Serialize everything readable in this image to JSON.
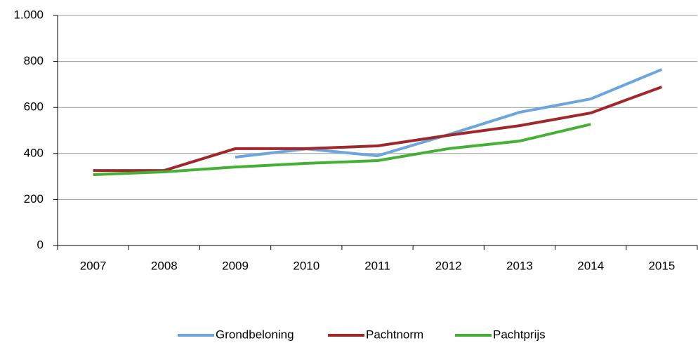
{
  "chart_data": {
    "type": "line",
    "categories": [
      "2007",
      "2008",
      "2009",
      "2010",
      "2011",
      "2012",
      "2013",
      "2014",
      "2015"
    ],
    "series": [
      {
        "name": "Grondbeloning",
        "color": "#6ca6dc",
        "values": [
          null,
          null,
          384,
          420,
          390,
          482,
          579,
          637,
          765
        ]
      },
      {
        "name": "Pachtnorm",
        "color": "#a0282d",
        "values": [
          326,
          326,
          421,
          421,
          433,
          479,
          521,
          576,
          689
        ]
      },
      {
        "name": "Pachtprijs",
        "color": "#45b035",
        "values": [
          308,
          320,
          341,
          357,
          369,
          421,
          454,
          527,
          null
        ]
      }
    ],
    "ylim": [
      0,
      1000
    ],
    "yticks": [
      0,
      200,
      400,
      600,
      800,
      {
        "value": 1000,
        "label": "1.000"
      }
    ],
    "grid": true,
    "legend": "bottom"
  }
}
